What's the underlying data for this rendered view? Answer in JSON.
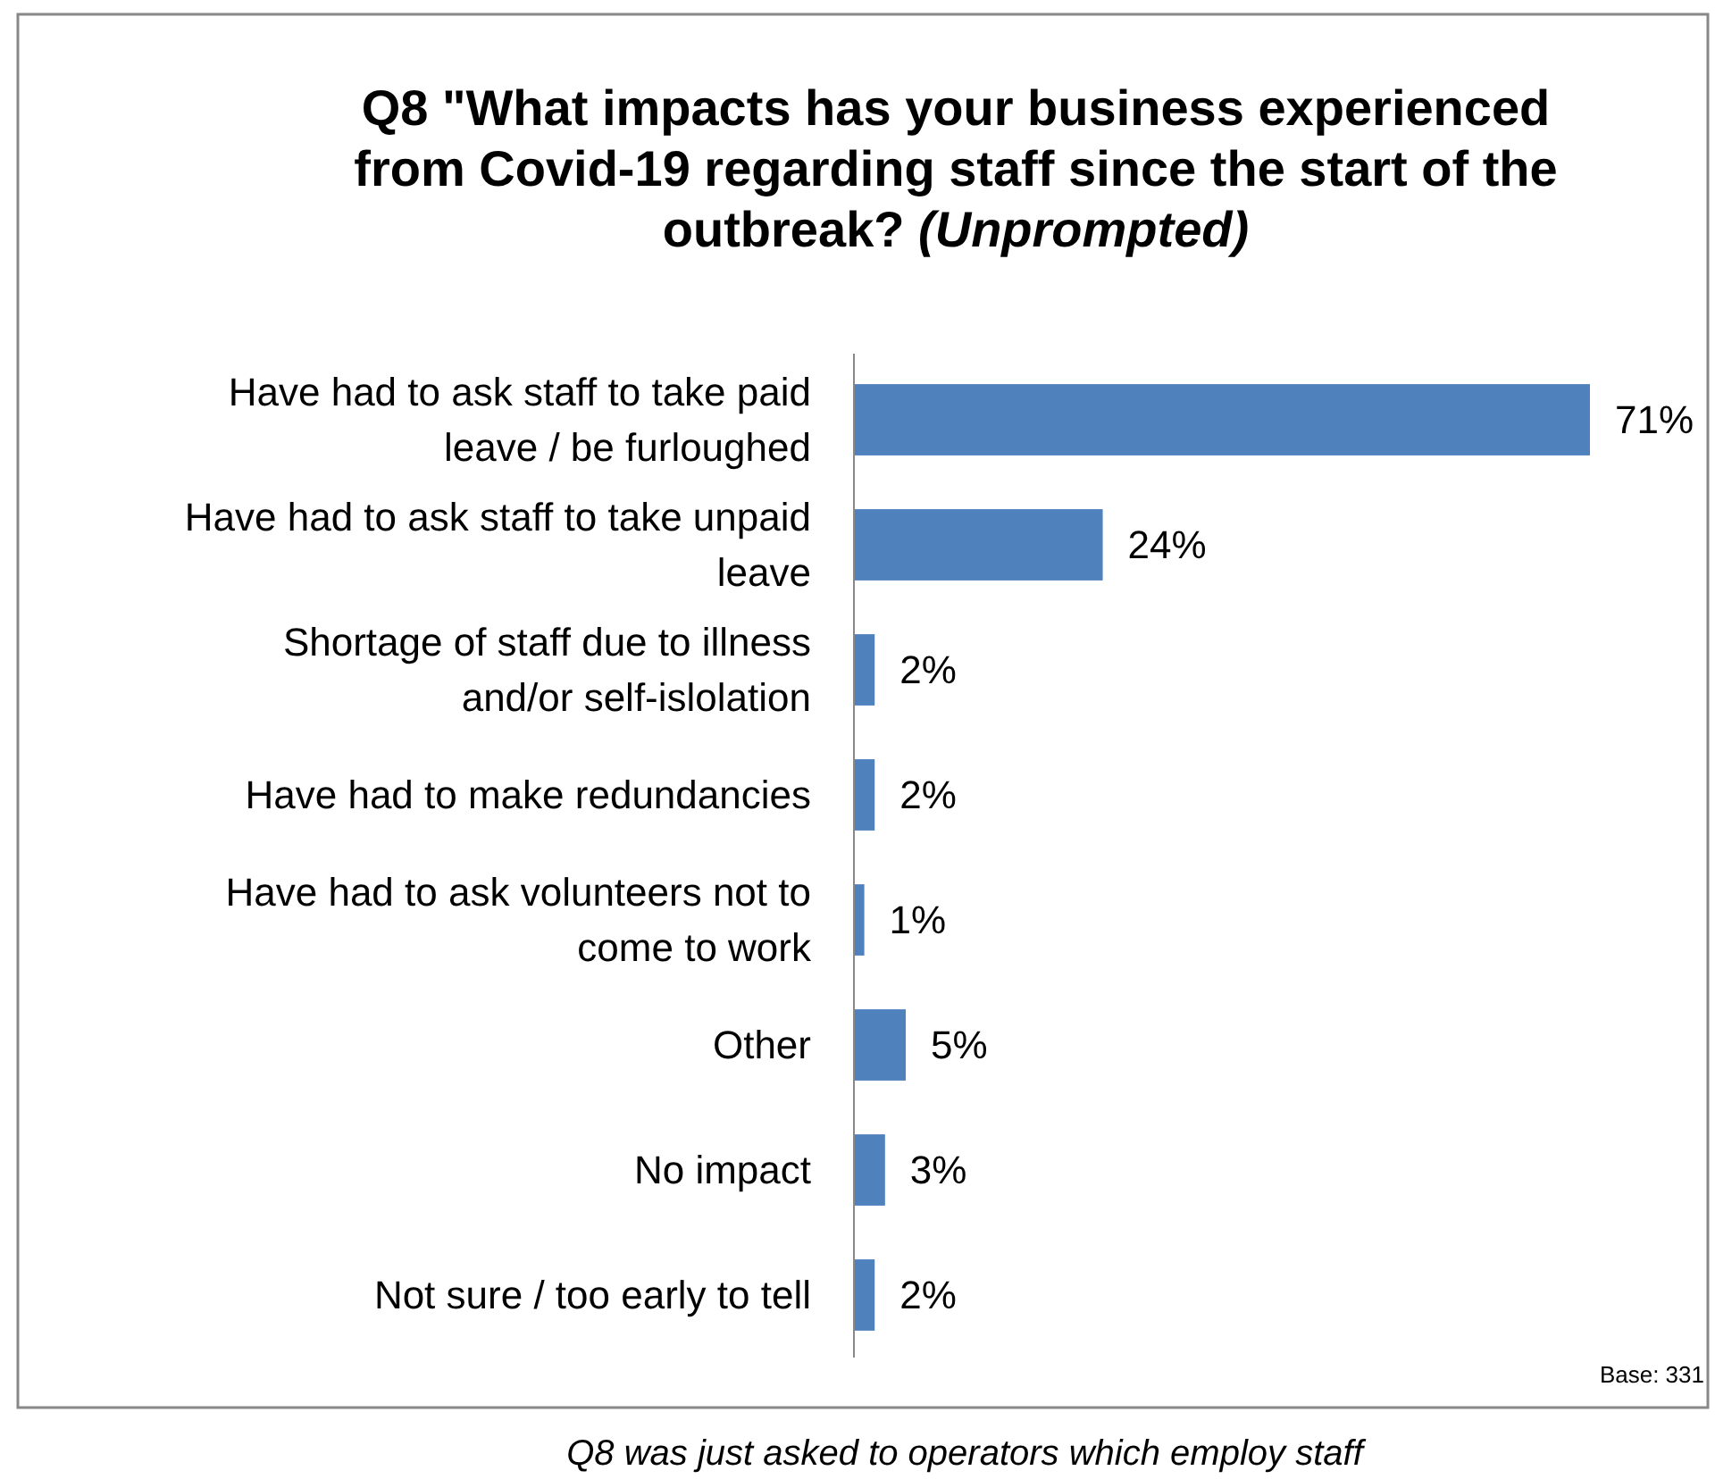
{
  "chart_data": {
    "type": "bar",
    "orientation": "horizontal",
    "title": "Q8 \"What impacts has your business experienced from Covid-19 regarding staff since the start of the outbreak? (Unprompted)",
    "categories": [
      "Have had to ask staff to take paid leave / be furloughed",
      "Have had to ask staff to take unpaid leave",
      "Shortage of staff due to illness and/or self-islolation",
      "Have had to make redundancies",
      "Have had to ask volunteers not to come to work",
      "Other",
      "No impact",
      "Not sure / too early to tell"
    ],
    "values": [
      71,
      24,
      2,
      2,
      1,
      5,
      3,
      2
    ],
    "color": "#4f81bd",
    "data_labels": true,
    "value_labels": [
      "71%",
      "24%",
      "2%",
      "2%",
      "1%",
      "5%",
      "3%",
      "2%"
    ],
    "annotations": [
      "Base: 331",
      "Q8 was just asked to operators which employ staff"
    ]
  }
}
